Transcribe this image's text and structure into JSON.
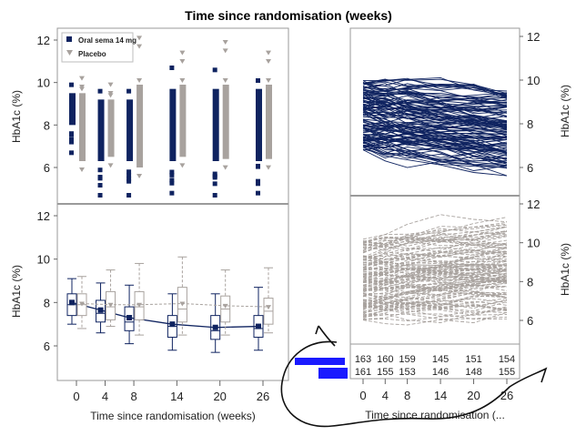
{
  "colors": {
    "active": "#0f2360",
    "placebo": "#a8a29e",
    "frame": "#9a9a9a",
    "annotation_blue": "#1a1aff",
    "annotation_ink": "#111111"
  },
  "chart_data": [
    {
      "id": "top-left",
      "type": "scatter",
      "title": "Time since randomisation (weeks)",
      "ylabel": "HbA1c (%)",
      "ylim": [
        4.6,
        12.5
      ],
      "yticks": [
        "6",
        "8",
        "10",
        "12"
      ],
      "x": [
        0,
        4,
        8,
        14,
        20,
        26
      ],
      "legend": {
        "placement": "top-left",
        "entries": [
          "Oral sema 14 mg",
          "Placebo"
        ]
      },
      "series": [
        {
          "name": "Oral sema 14 mg",
          "marker": "square",
          "range_min": [
            6.8,
            4.8,
            4.8,
            4.9,
            4.8,
            4.9
          ],
          "range_max": [
            10.0,
            9.7,
            9.7,
            10.8,
            10.7,
            10.2
          ]
        },
        {
          "name": "Placebo",
          "marker": "triangle-down",
          "range_min": [
            6.0,
            6.2,
            5.7,
            6.2,
            6.1,
            6.1
          ],
          "range_max": [
            10.3,
            10.0,
            12.2,
            11.5,
            12.0,
            11.5
          ]
        }
      ]
    },
    {
      "id": "bottom-left",
      "type": "box",
      "xlabel": "Time since randomisation (weeks)",
      "ylabel": "HbA1c (%)",
      "ylim": [
        4.6,
        12.5
      ],
      "yticks": [
        "6",
        "8",
        "10",
        "12"
      ],
      "categories": [
        "0",
        "4",
        "8",
        "14",
        "20",
        "26"
      ],
      "series": [
        {
          "name": "Oral sema 14 mg",
          "mean": [
            8.0,
            7.65,
            7.3,
            7.0,
            6.85,
            6.9
          ],
          "q1": [
            7.4,
            7.1,
            6.7,
            6.4,
            6.3,
            6.4
          ],
          "median": [
            7.9,
            7.5,
            7.1,
            6.9,
            6.7,
            6.8
          ],
          "q3": [
            8.4,
            8.1,
            7.8,
            7.4,
            7.4,
            7.4
          ],
          "whisker_low": [
            7.0,
            6.6,
            6.1,
            5.8,
            5.7,
            5.8
          ],
          "whisker_high": [
            9.1,
            8.9,
            8.8,
            8.4,
            8.4,
            8.7
          ]
        },
        {
          "name": "Placebo",
          "mean": [
            7.95,
            7.9,
            7.9,
            7.95,
            7.85,
            7.8
          ],
          "q1": [
            7.4,
            7.2,
            7.2,
            7.1,
            7.1,
            7.0
          ],
          "median": [
            7.9,
            7.8,
            7.8,
            7.7,
            7.7,
            7.6
          ],
          "q3": [
            8.4,
            8.5,
            8.5,
            8.7,
            8.3,
            8.2
          ],
          "whisker_low": [
            6.8,
            6.9,
            6.5,
            6.5,
            6.5,
            6.6
          ],
          "whisker_high": [
            9.2,
            9.5,
            9.8,
            10.1,
            9.5,
            9.6
          ]
        }
      ]
    },
    {
      "id": "top-right",
      "type": "line",
      "ylabel": "HbA1c (%)",
      "ylim": [
        4.6,
        12.5
      ],
      "yticks": [
        "6",
        "8",
        "10",
        "12"
      ],
      "x": [
        0,
        4,
        8,
        14,
        20,
        26
      ],
      "series_name": "Oral sema 14 mg (individual subjects)",
      "band_start": [
        6.8,
        10.0
      ],
      "band_end": [
        5.2,
        10.2
      ]
    },
    {
      "id": "bottom-right",
      "type": "line",
      "xlabel": "Time since randomisation (...",
      "ylabel": "HbA1c (%)",
      "ylim": [
        4.6,
        12.5
      ],
      "yticks": [
        "6",
        "8",
        "10",
        "12"
      ],
      "x": [
        0,
        4,
        8,
        14,
        20,
        26
      ],
      "xticks": [
        "0",
        "4",
        "8",
        "14",
        "20",
        "26"
      ],
      "series_name": "Placebo (individual subjects)",
      "band_start": [
        6.0,
        10.2
      ],
      "band_end": [
        6.0,
        11.4
      ],
      "counts": {
        "row1": [
          "163",
          "160",
          "159",
          "145",
          "151",
          "154"
        ],
        "row2": [
          "161",
          "155",
          "153",
          "146",
          "148",
          "155"
        ]
      }
    }
  ]
}
